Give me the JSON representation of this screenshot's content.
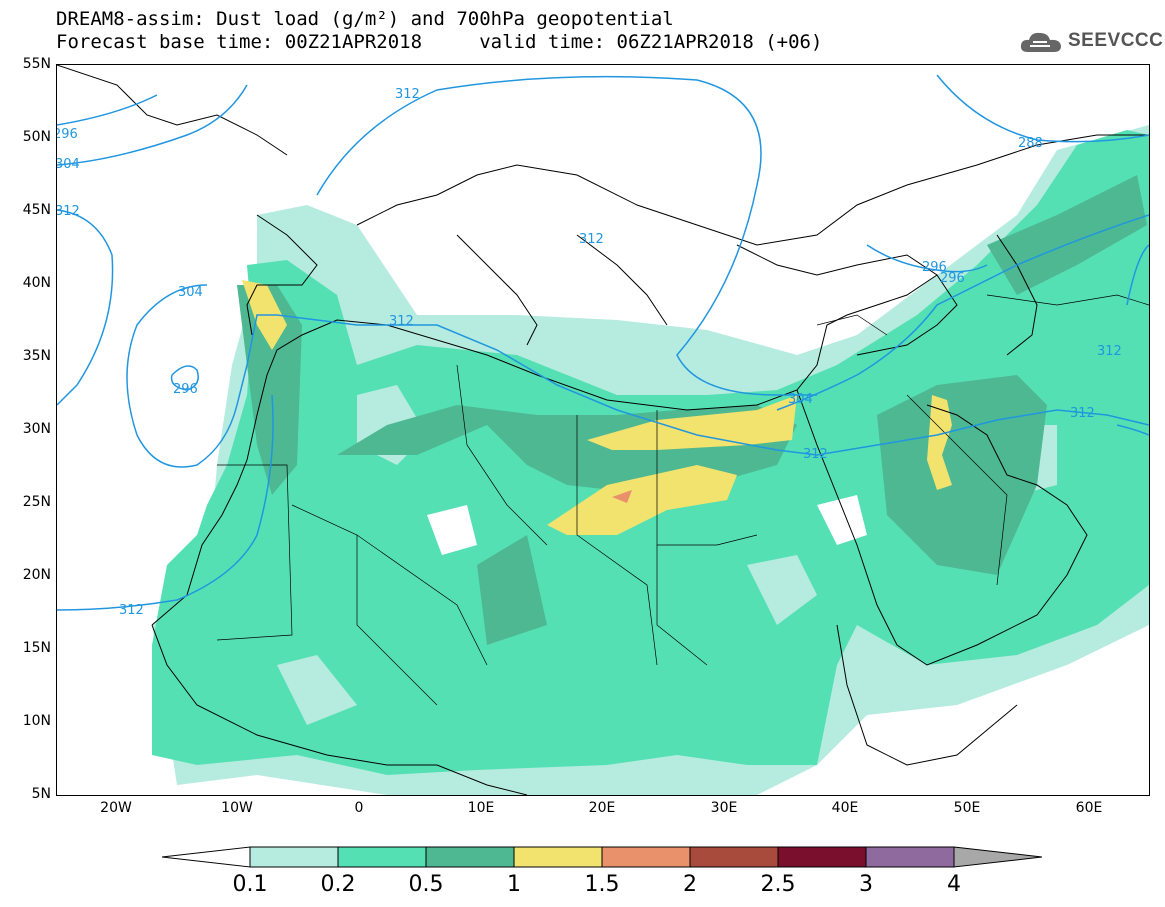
{
  "header": {
    "title_line1": "DREAM8-assim: Dust load (g/m²) and 700hPa geopotential",
    "title_line2": "Forecast base time: 00Z21APR2018     valid time: 06Z21APR2018 (+06)"
  },
  "logo": {
    "text": "SEEVCCC",
    "icon": "cloud-icon"
  },
  "axes": {
    "lat_labels": [
      "55N",
      "50N",
      "45N",
      "40N",
      "35N",
      "30N",
      "25N",
      "20N",
      "15N",
      "10N",
      "5N"
    ],
    "lon_labels": [
      "20W",
      "10W",
      "0",
      "10E",
      "20E",
      "30E",
      "40E",
      "50E",
      "60E"
    ]
  },
  "contours": {
    "color": "#2196e0",
    "labels": [
      "312",
      "296",
      "304",
      "312",
      "312",
      "304",
      "296",
      "312",
      "304",
      "296",
      "296",
      "288",
      "312",
      "312",
      "312",
      "312"
    ]
  },
  "legend": {
    "labels": [
      "0.1",
      "0.2",
      "0.5",
      "1",
      "1.5",
      "2",
      "2.5",
      "3",
      "4"
    ],
    "colors": [
      "#b5ecdf",
      "#55e0b4",
      "#4db892",
      "#f2e26e",
      "#e8916b",
      "#a84b3c",
      "#7a0f2d",
      "#8e6a9f"
    ],
    "under_color": "#ffffff",
    "over_color": "#a8a8a8"
  },
  "palette": {
    "very_light": "#b5ecdf",
    "light": "#55e0b4",
    "medium": "#4db892",
    "yellow": "#f2e26e",
    "salmon": "#e8916b"
  }
}
